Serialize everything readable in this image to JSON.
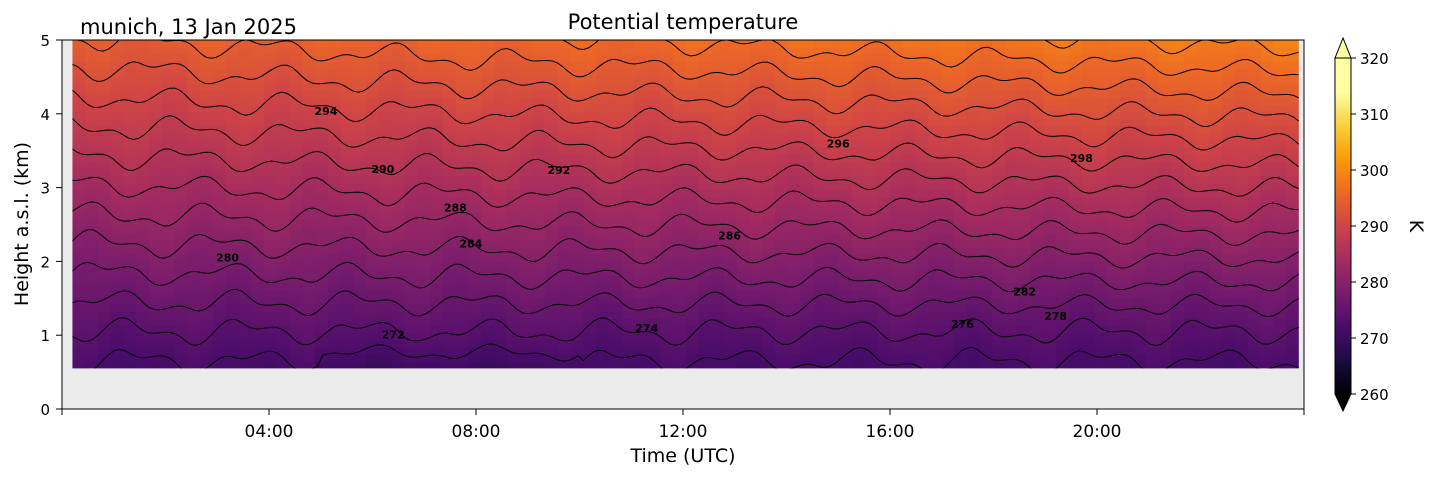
{
  "location_date": "munich, 13 Jan 2025",
  "chart_data": {
    "type": "heatmap",
    "title": "Potential temperature",
    "xlabel": "Time (UTC)",
    "ylabel": "Height a.s.l. (km)",
    "xlim": [
      0,
      24
    ],
    "ylim": [
      0,
      5
    ],
    "x_ticks": [
      {
        "value": 4,
        "label": "04:00"
      },
      {
        "value": 8,
        "label": "08:00"
      },
      {
        "value": 12,
        "label": "12:00"
      },
      {
        "value": 16,
        "label": "16:00"
      },
      {
        "value": 20,
        "label": "20:00"
      }
    ],
    "y_ticks": [
      {
        "value": 0,
        "label": "0"
      },
      {
        "value": 1,
        "label": "1"
      },
      {
        "value": 2,
        "label": "2"
      },
      {
        "value": 3,
        "label": "3"
      },
      {
        "value": 4,
        "label": "4"
      },
      {
        "value": 5,
        "label": "5"
      }
    ],
    "data_extent": {
      "x": [
        0.2,
        23.9
      ],
      "y": [
        0.55,
        5.0
      ]
    },
    "missing_color": "#ebebeb",
    "colormap": "inferno",
    "colorbar": {
      "label": "K",
      "range": [
        260,
        320
      ],
      "extend": "both",
      "ticks": [
        "260",
        "270",
        "280",
        "290",
        "300",
        "310",
        "320"
      ]
    },
    "contour_interval_K": 2,
    "contour_labels": [
      {
        "text": "272",
        "x": 6.4,
        "y": 1.01
      },
      {
        "text": "274",
        "x": 11.3,
        "y": 1.1
      },
      {
        "text": "276",
        "x": 17.4,
        "y": 1.15
      },
      {
        "text": "278",
        "x": 19.2,
        "y": 1.26
      },
      {
        "text": "282",
        "x": 18.6,
        "y": 1.59
      },
      {
        "text": "280",
        "x": 3.2,
        "y": 2.05
      },
      {
        "text": "284",
        "x": 7.9,
        "y": 2.24
      },
      {
        "text": "286",
        "x": 12.9,
        "y": 2.35
      },
      {
        "text": "288",
        "x": 7.6,
        "y": 2.73
      },
      {
        "text": "290",
        "x": 6.2,
        "y": 3.25
      },
      {
        "text": "292",
        "x": 9.6,
        "y": 3.24
      },
      {
        "text": "294",
        "x": 5.1,
        "y": 4.04
      },
      {
        "text": "296",
        "x": 15.0,
        "y": 3.6
      },
      {
        "text": "298",
        "x": 19.7,
        "y": 3.4
      }
    ]
  }
}
